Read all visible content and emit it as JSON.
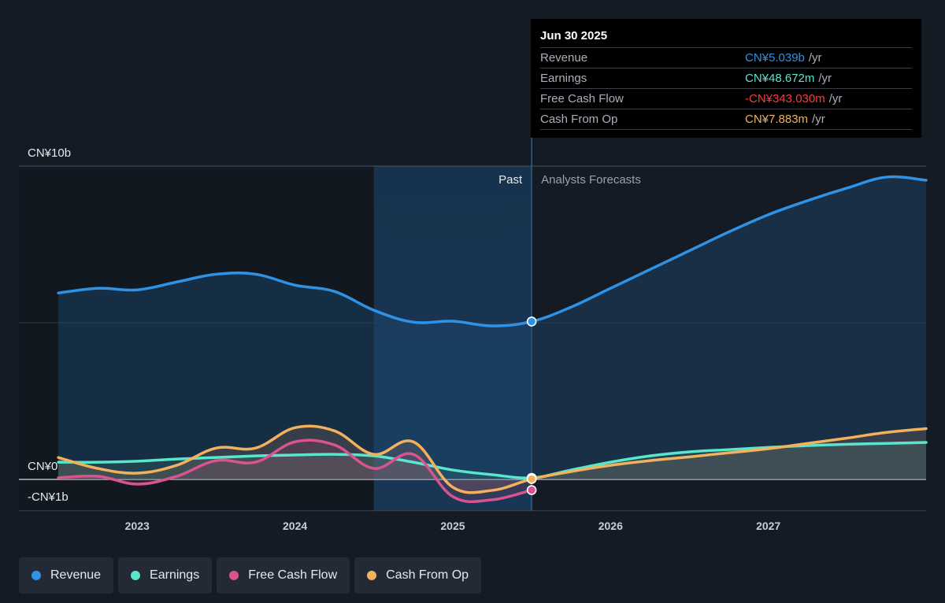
{
  "tooltip": {
    "date": "Jun 30 2025",
    "rows": [
      {
        "name": "Revenue",
        "value": "CN¥5.039b",
        "unit": "/yr",
        "color": "#2e93e6"
      },
      {
        "name": "Earnings",
        "value": "CN¥48.672m",
        "unit": "/yr",
        "color": "#58e6cc"
      },
      {
        "name": "Free Cash Flow",
        "value": "-CN¥343.030m",
        "unit": "/yr",
        "color": "#ff3b3b"
      },
      {
        "name": "Cash From Op",
        "value": "CN¥7.883m",
        "unit": "/yr",
        "color": "#f2b15c"
      }
    ]
  },
  "legend": [
    {
      "name": "Revenue",
      "color": "#2e93e6"
    },
    {
      "name": "Earnings",
      "color": "#58e6cc"
    },
    {
      "name": "Free Cash Flow",
      "color": "#d9538f"
    },
    {
      "name": "Cash From Op",
      "color": "#f2b15c"
    }
  ],
  "regions": {
    "past_label": "Past",
    "forecast_label": "Analysts Forecasts"
  },
  "chart_data": {
    "type": "line",
    "y_axis": {
      "top_label": "CN¥10b",
      "zero_label": "CN¥0",
      "bottom_label": "-CN¥1b",
      "ylim": [
        -1,
        10
      ],
      "unit": "CN¥b"
    },
    "x_axis": {
      "ticks": [
        "2023",
        "2024",
        "2025",
        "2026",
        "2027"
      ],
      "tick_values": [
        2023.0,
        2024.0,
        2025.0,
        2026.0,
        2027.0
      ],
      "xlim": [
        2022.25,
        2028.0
      ]
    },
    "past_end": 2025.5,
    "highlight_start": 2024.5,
    "series": [
      {
        "name": "Revenue",
        "color": "#2e93e6",
        "x": [
          2022.5,
          2022.75,
          2023.0,
          2023.25,
          2023.5,
          2023.75,
          2024.0,
          2024.25,
          2024.5,
          2024.75,
          2025.0,
          2025.25,
          2025.5,
          2025.75,
          2026.0,
          2026.25,
          2026.5,
          2026.75,
          2027.0,
          2027.25,
          2027.5,
          2027.75,
          2028.0
        ],
        "y": [
          5.95,
          6.1,
          6.05,
          6.3,
          6.55,
          6.55,
          6.2,
          6.0,
          5.4,
          5.02,
          5.05,
          4.9,
          5.04,
          5.5,
          6.1,
          6.7,
          7.3,
          7.9,
          8.45,
          8.9,
          9.3,
          9.65,
          9.55
        ]
      },
      {
        "name": "Earnings",
        "color": "#58e6cc",
        "x": [
          2022.5,
          2022.75,
          2023.0,
          2023.25,
          2023.5,
          2023.75,
          2024.0,
          2024.25,
          2024.5,
          2024.75,
          2025.0,
          2025.25,
          2025.5,
          2025.75,
          2026.0,
          2026.25,
          2026.5,
          2026.75,
          2027.0,
          2027.25,
          2027.5,
          2027.75,
          2028.0
        ],
        "y": [
          0.55,
          0.55,
          0.58,
          0.65,
          0.7,
          0.75,
          0.78,
          0.8,
          0.75,
          0.55,
          0.3,
          0.15,
          0.05,
          0.3,
          0.55,
          0.75,
          0.88,
          0.95,
          1.02,
          1.08,
          1.12,
          1.15,
          1.18
        ]
      },
      {
        "name": "Free Cash Flow",
        "color": "#d9538f",
        "x": [
          2022.5,
          2022.75,
          2023.0,
          2023.25,
          2023.5,
          2023.75,
          2024.0,
          2024.25,
          2024.5,
          2024.75,
          2025.0,
          2025.25,
          2025.5
        ],
        "y": [
          0.05,
          0.1,
          -0.15,
          0.1,
          0.6,
          0.55,
          1.2,
          1.1,
          0.35,
          0.8,
          -0.55,
          -0.65,
          -0.34
        ]
      },
      {
        "name": "Cash From Op",
        "color": "#f2b15c",
        "x": [
          2022.5,
          2022.75,
          2023.0,
          2023.25,
          2023.5,
          2023.75,
          2024.0,
          2024.25,
          2024.5,
          2024.75,
          2025.0,
          2025.25,
          2025.5,
          2025.75,
          2026.0,
          2026.25,
          2026.5,
          2026.75,
          2027.0,
          2027.25,
          2027.5,
          2027.75,
          2028.0
        ],
        "y": [
          0.7,
          0.35,
          0.2,
          0.45,
          1.0,
          1.0,
          1.65,
          1.55,
          0.8,
          1.2,
          -0.25,
          -0.35,
          0.01,
          0.25,
          0.45,
          0.6,
          0.72,
          0.85,
          0.98,
          1.15,
          1.32,
          1.5,
          1.62
        ]
      }
    ]
  }
}
